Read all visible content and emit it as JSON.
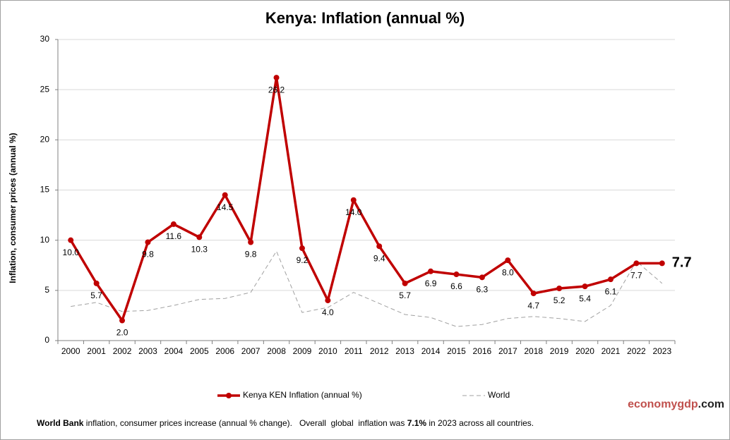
{
  "chart_data": {
    "type": "line",
    "title": "Kenya:  Inflation (annual %)",
    "y_label": "Inflation, consumer prices (annual %)",
    "categories": [
      "2000",
      "2001",
      "2002",
      "2003",
      "2004",
      "2005",
      "2006",
      "2007",
      "2008",
      "2009",
      "2010",
      "2011",
      "2012",
      "2013",
      "2014",
      "2015",
      "2016",
      "2017",
      "2018",
      "2019",
      "2020",
      "2021",
      "2022",
      "2023"
    ],
    "series": [
      {
        "name": "Kenya KEN Inflation (annual %)",
        "color": "#c00000",
        "style": "solid",
        "values": [
          10.0,
          5.7,
          2.0,
          9.8,
          11.6,
          10.3,
          14.5,
          9.8,
          26.2,
          9.2,
          4.0,
          14.0,
          9.4,
          5.7,
          6.9,
          6.6,
          6.3,
          8.0,
          4.7,
          5.2,
          5.4,
          6.1,
          7.7,
          7.7
        ],
        "value_labels": [
          "10.0",
          "5.7",
          "2.0",
          "9.8",
          "11.6",
          "10.3",
          "14.5",
          "9.8",
          "26.2",
          "9.2",
          "4.0",
          "14.0",
          "9.4",
          "5.7",
          "6.9",
          "6.6",
          "6.3",
          "8.0",
          "4.7",
          "5.2",
          "5.4",
          "6.1",
          "7.7",
          "7.7"
        ]
      },
      {
        "name": "World",
        "color": "#a0a0a0",
        "style": "dashed",
        "values": [
          3.4,
          3.8,
          2.9,
          3.0,
          3.5,
          4.1,
          4.2,
          4.8,
          8.9,
          2.8,
          3.3,
          4.8,
          3.7,
          2.6,
          2.3,
          1.4,
          1.6,
          2.2,
          2.4,
          2.2,
          1.9,
          3.5,
          7.9,
          5.7
        ]
      }
    ],
    "ylim": [
      0,
      30
    ],
    "yticks": [
      0,
      5,
      10,
      15,
      20,
      25,
      30
    ],
    "grid": true,
    "brand": [
      {
        "text": "economy",
        "color": "#c0504d"
      },
      {
        "text": "gdp",
        "color": "#c0504d"
      },
      {
        "text": ".com",
        "color": "#222222"
      }
    ],
    "footnote": [
      {
        "text": "World Bank",
        "bold": true
      },
      {
        "text": " inflation, consumer prices increase (annual % change).   Overall  global  inflation was ",
        "bold": false
      },
      {
        "text": "7.1%",
        "bold": true
      },
      {
        "text": " in 2023 across all countries.",
        "bold": false
      }
    ]
  }
}
